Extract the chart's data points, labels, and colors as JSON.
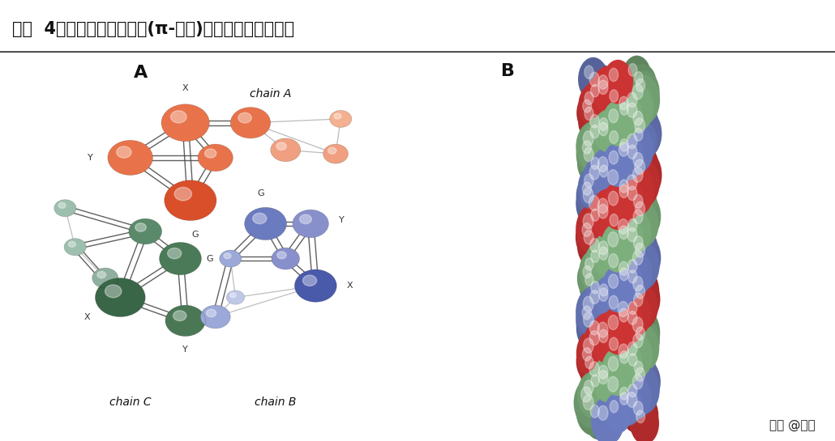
{
  "title": "图表  4胶原蛋白三螺旋构象(π-螺旋)的横截面及聚合方式",
  "title_bg": "#d8d8d8",
  "bg_color": "#ffffff",
  "watermark": "头条 @财是",
  "label_A": "A",
  "label_B": "B",
  "chain_label_A": "chain A",
  "chain_label_B": "chain B",
  "chain_label_C": "chain C"
}
